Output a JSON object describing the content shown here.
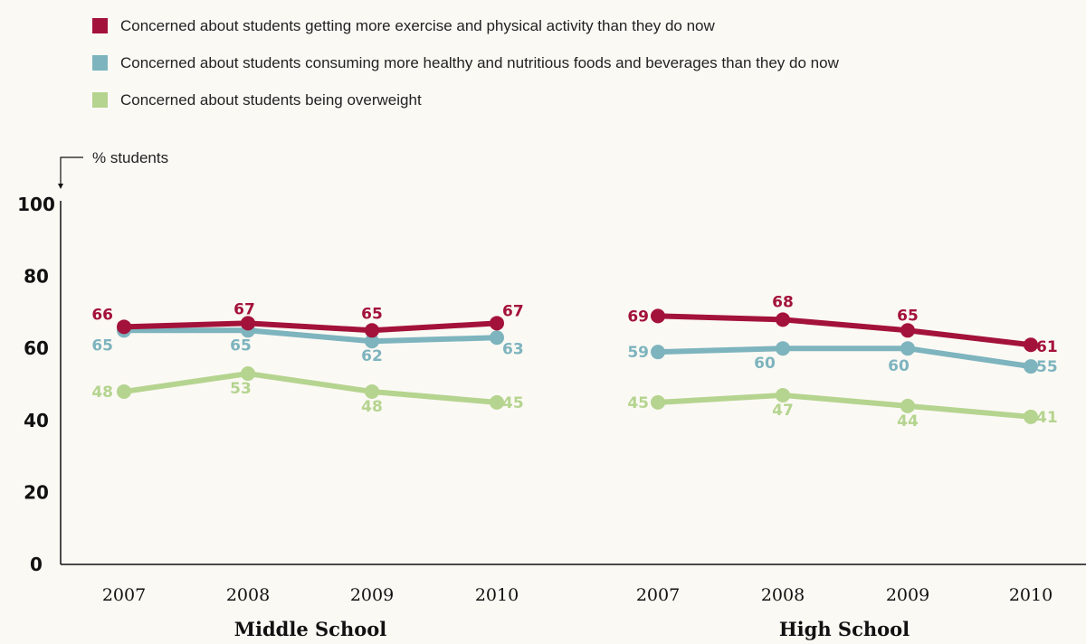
{
  "chart_data": {
    "type": "line",
    "unit_label": "% students",
    "ylim": [
      0,
      100
    ],
    "yticks": [
      "0",
      "20",
      "40",
      "60",
      "80",
      "100"
    ],
    "grid": false,
    "legend_position": "top-left",
    "colors": {
      "exercise": "#a3123a",
      "nutrition": "#7db4be",
      "overweight": "#b5d48f"
    },
    "series": [
      {
        "key": "exercise",
        "name": "Concerned about students getting more exercise and physical activity than they do now"
      },
      {
        "key": "nutrition",
        "name": "Concerned about students consuming more healthy and nutritious foods and beverages than they do now"
      },
      {
        "key": "overweight",
        "name": "Concerned about students being overweight"
      }
    ],
    "groups": [
      {
        "name": "Middle School",
        "x": [
          "2007",
          "2008",
          "2009",
          "2010"
        ],
        "values": {
          "exercise": [
            66,
            67,
            65,
            67
          ],
          "nutrition": [
            65,
            65,
            62,
            63
          ],
          "overweight": [
            48,
            53,
            48,
            45
          ]
        }
      },
      {
        "name": "High School",
        "x": [
          "2007",
          "2008",
          "2009",
          "2010"
        ],
        "values": {
          "exercise": [
            69,
            68,
            65,
            61
          ],
          "nutrition": [
            59,
            60,
            60,
            55
          ],
          "overweight": [
            45,
            47,
            44,
            41
          ]
        }
      }
    ]
  }
}
